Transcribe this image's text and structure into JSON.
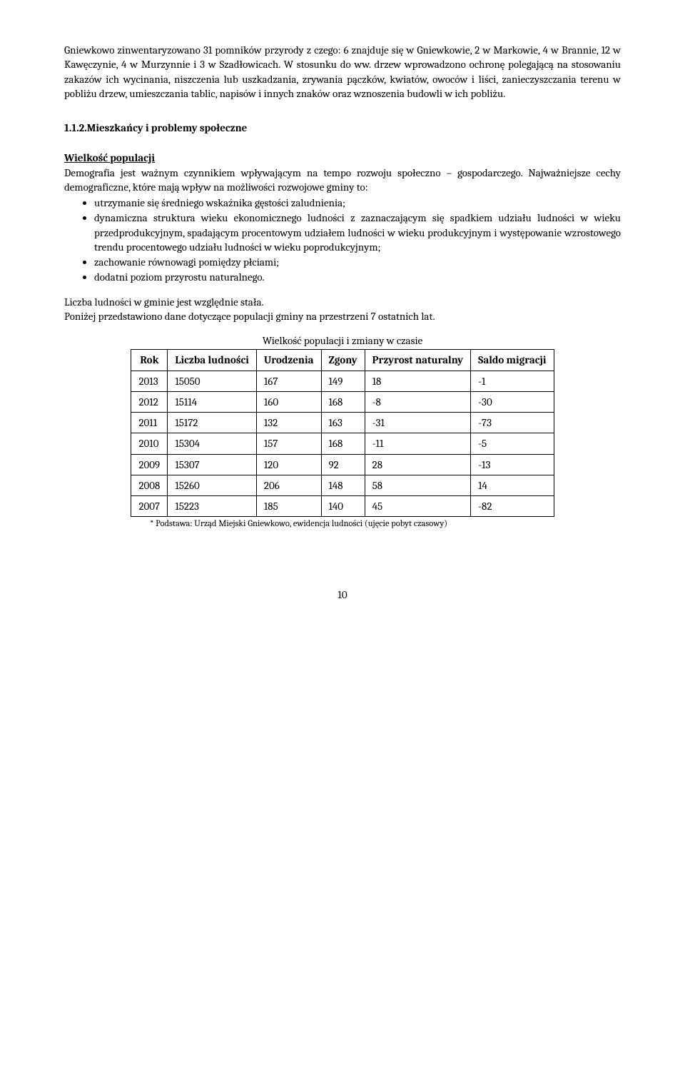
{
  "intro": {
    "p1": "Gniewkowo zinwentaryzowano 31 pomników przyrody z czego: 6 znajduje się w Gniewkowie, 2 w Markowie, 4 w Brannie, 12 w Kawęczynie, 4 w Murzynnie i 3 w Szadłowicach. W stosunku do ww. drzew wprowadzono ochronę polegającą na stosowaniu zakazów ich wycinania, niszczenia lub uszkadzania, zrywania pączków, kwiatów, owoców i liści, zanieczyszczania terenu w pobliżu drzew, umieszczania tablic, napisów i innych znaków oraz wznoszenia budowli w ich pobliżu."
  },
  "section": {
    "heading": "1.1.2.Mieszkańcy i problemy społeczne"
  },
  "population": {
    "subheading": "Wielkość populacji",
    "lead": "Demografia jest ważnym czynnikiem wpływającym na tempo rozwoju społeczno – gospodarczego. Najważniejsze cechy demograficzne, które mają wpływ na możliwości rozwojowe gminy to:",
    "bullets": [
      "utrzymanie się średniego wskaźnika gęstości zaludnienia;",
      "dynamiczna struktura wieku ekonomicznego ludności z zaznaczającym się spadkiem udziału ludności w wieku przedprodukcyjnym, spadającym procentowym udziałem ludności w wieku produkcyjnym i występowanie wzrostowego trendu procentowego udziału ludności w wieku poprodukcyjnym;",
      "zachowanie równowagi pomiędzy płciami;",
      "dodatni poziom przyrostu naturalnego."
    ],
    "para2a": "Liczba ludności w gminie jest względnie stała.",
    "para2b": "Poniżej przedstawiono dane dotyczące populacji gminy na przestrzeni 7 ostatnich lat."
  },
  "table": {
    "caption": "Wielkość populacji i zmiany w czasie",
    "columns": [
      "Rok",
      "Liczba ludności",
      "Urodzenia",
      "Zgony",
      "Przyrost naturalny",
      "Saldo migracji"
    ],
    "rows": [
      [
        "2013",
        "15050",
        "167",
        "149",
        "18",
        "-1"
      ],
      [
        "2012",
        "15114",
        "160",
        "168",
        "-8",
        "-30"
      ],
      [
        "2011",
        "15172",
        "132",
        "163",
        "-31",
        "-73"
      ],
      [
        "2010",
        "15304",
        "157",
        "168",
        "-11",
        "-5"
      ],
      [
        "2009",
        "15307",
        "120",
        "92",
        "28",
        "-13"
      ],
      [
        "2008",
        "15260",
        "206",
        "148",
        "58",
        "14"
      ],
      [
        "2007",
        "15223",
        "185",
        "140",
        "45",
        "-82"
      ]
    ],
    "footnote": "* Podstawa: Urząd Miejski Gniewkowo, ewidencja ludności (ujęcie pobyt czasowy)"
  },
  "page_number": "10"
}
